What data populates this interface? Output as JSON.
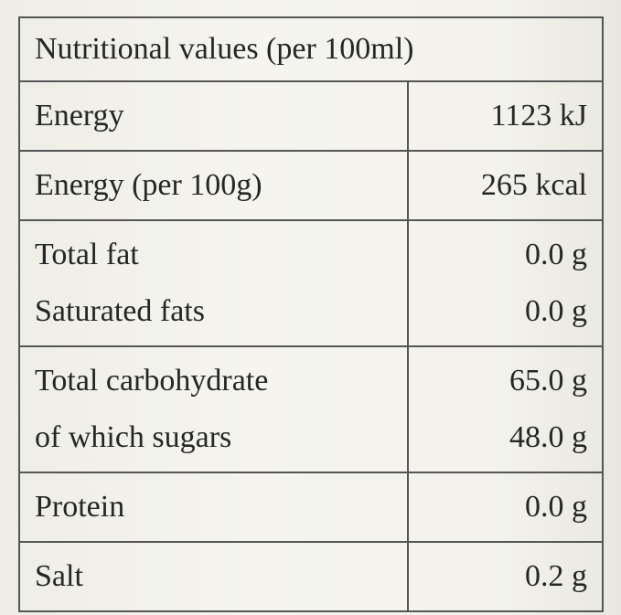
{
  "table": {
    "header": "Nutritional values (per 100ml)",
    "rows": [
      [
        [
          "Energy",
          "1123 kJ"
        ]
      ],
      [
        [
          "Energy (per 100g)",
          "265 kcal"
        ]
      ],
      [
        [
          "Total fat",
          "0.0 g"
        ],
        [
          "Saturated fats",
          "0.0 g"
        ]
      ],
      [
        [
          "Total carbohydrate",
          "65.0 g"
        ],
        [
          "of which sugars",
          "48.0 g"
        ]
      ],
      [
        [
          "Protein",
          "0.0 g"
        ]
      ],
      [
        [
          "Salt",
          "0.2 g"
        ]
      ]
    ]
  }
}
